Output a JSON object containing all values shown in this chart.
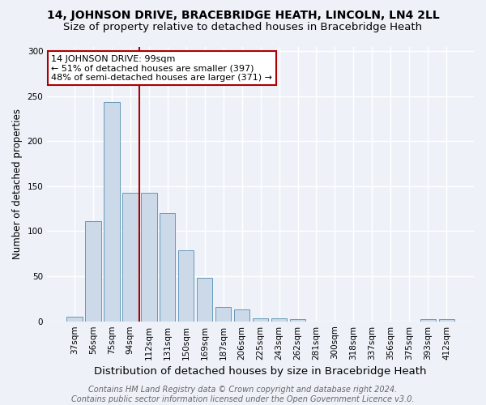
{
  "title": "14, JOHNSON DRIVE, BRACEBRIDGE HEATH, LINCOLN, LN4 2LL",
  "subtitle": "Size of property relative to detached houses in Bracebridge Heath",
  "xlabel": "Distribution of detached houses by size in Bracebridge Heath",
  "ylabel": "Number of detached properties",
  "bar_labels": [
    "37sqm",
    "56sqm",
    "75sqm",
    "94sqm",
    "112sqm",
    "131sqm",
    "150sqm",
    "169sqm",
    "187sqm",
    "206sqm",
    "225sqm",
    "243sqm",
    "262sqm",
    "281sqm",
    "300sqm",
    "318sqm",
    "337sqm",
    "356sqm",
    "375sqm",
    "393sqm",
    "412sqm"
  ],
  "bar_values": [
    5,
    111,
    243,
    143,
    143,
    120,
    79,
    48,
    16,
    13,
    3,
    3,
    2,
    0,
    0,
    0,
    0,
    0,
    0,
    2,
    2
  ],
  "bar_color": "#ccd9e8",
  "bar_edgecolor": "#6699bb",
  "vline_x": 3.5,
  "vline_color": "#aa0000",
  "annotation_text": "14 JOHNSON DRIVE: 99sqm\n← 51% of detached houses are smaller (397)\n48% of semi-detached houses are larger (371) →",
  "annotation_box_color": "#ffffff",
  "annotation_box_edgecolor": "#aa0000",
  "ylim": [
    0,
    305
  ],
  "yticks": [
    0,
    50,
    100,
    150,
    200,
    250,
    300
  ],
  "footer_text": "Contains HM Land Registry data © Crown copyright and database right 2024.\nContains public sector information licensed under the Open Government Licence v3.0.",
  "background_color": "#eef2f8",
  "plot_background": "#eef2f8",
  "grid_color": "#ffffff",
  "title_fontsize": 10,
  "subtitle_fontsize": 9.5,
  "xlabel_fontsize": 9.5,
  "ylabel_fontsize": 8.5,
  "tick_fontsize": 7.5,
  "annotation_fontsize": 8,
  "footer_fontsize": 7
}
